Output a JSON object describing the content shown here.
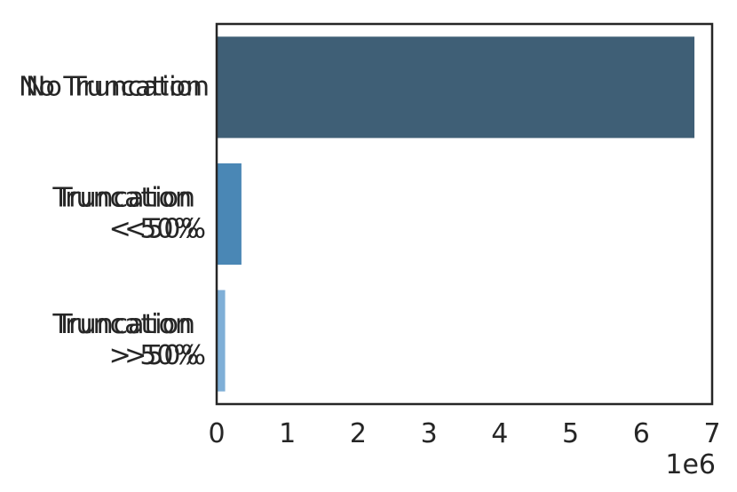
{
  "chart_data": {
    "type": "bar",
    "orientation": "horizontal",
    "categories": [
      [
        "No Truncation",
        "No Truncation"
      ],
      [
        "Truncation",
        "< 50%",
        "Truncation",
        "<50%"
      ],
      [
        "Truncation",
        "> 50%",
        "Truncation",
        ">50%"
      ]
    ],
    "values": [
      6750000,
      350000,
      120000
    ],
    "colors": [
      "#3f5f76",
      "#4a87b5",
      "#7fafd7"
    ],
    "xlim": [
      0,
      7000000
    ],
    "xticks": [
      0,
      1,
      2,
      3,
      4,
      5,
      6,
      7
    ],
    "x_offset_label": "1e6",
    "title": "",
    "xlabel": "",
    "ylabel": "",
    "grid": false,
    "legend": "none"
  }
}
